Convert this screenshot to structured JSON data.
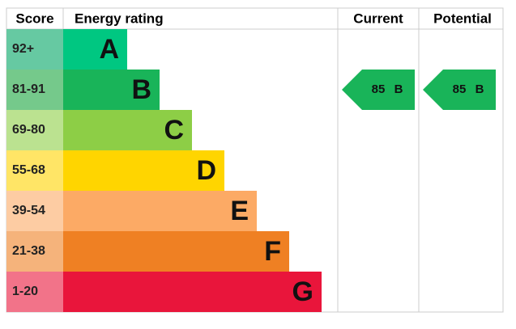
{
  "header": {
    "score": "Score",
    "rating": "Energy rating",
    "current": "Current",
    "potential": "Potential"
  },
  "bands": [
    {
      "score": "92+",
      "letter": "A",
      "color": "#00c781",
      "score_color": "#66c9a2"
    },
    {
      "score": "81-91",
      "letter": "B",
      "color": "#19b459",
      "score_color": "#75c98b"
    },
    {
      "score": "69-80",
      "letter": "C",
      "color": "#8dce46",
      "score_color": "#bbe290"
    },
    {
      "score": "55-68",
      "letter": "D",
      "color": "#ffd500",
      "score_color": "#ffe566"
    },
    {
      "score": "39-54",
      "letter": "E",
      "color": "#fcaa65",
      "score_color": "#fdcca3"
    },
    {
      "score": "21-38",
      "letter": "F",
      "color": "#ef8023",
      "score_color": "#f5b37b"
    },
    {
      "score": "1-20",
      "letter": "G",
      "color": "#e9153b",
      "score_color": "#f27389"
    }
  ],
  "current": {
    "value": 85,
    "letter": "B"
  },
  "potential": {
    "value": 85,
    "letter": "B"
  }
}
